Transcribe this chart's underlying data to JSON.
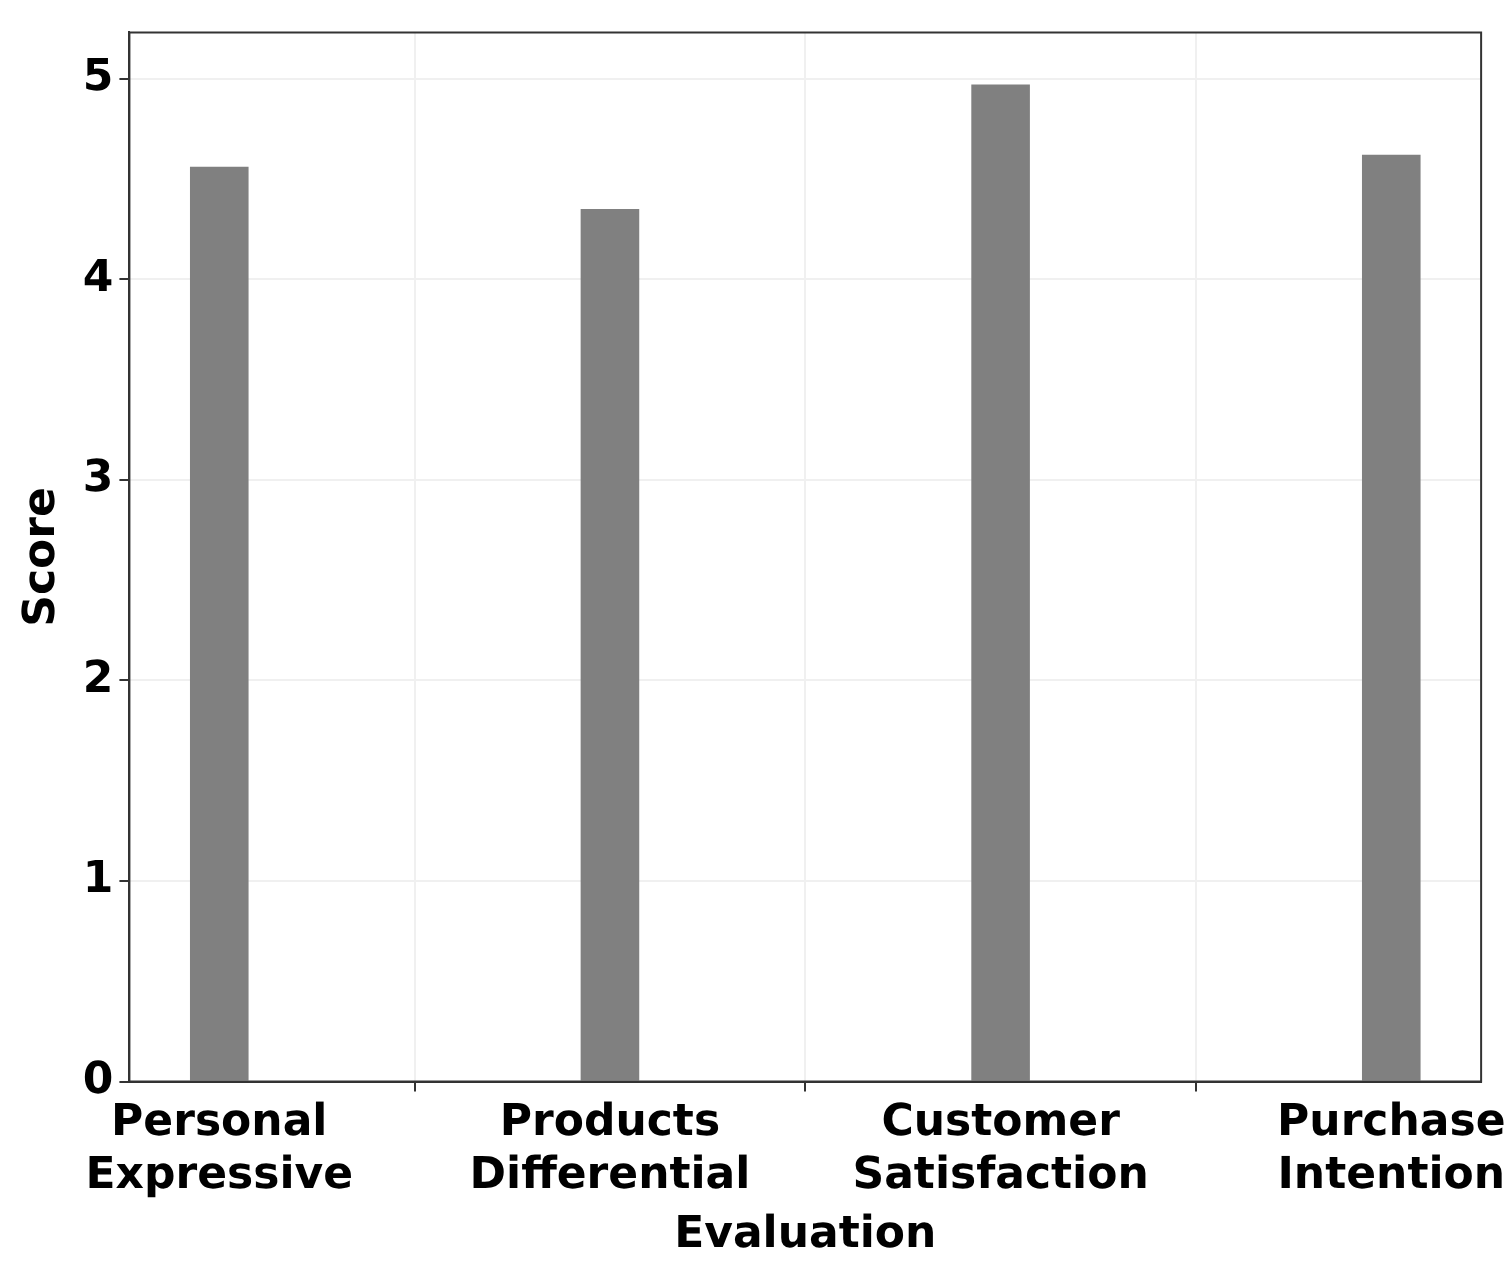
{
  "chart_data": {
    "type": "bar",
    "xlabel": "Evaluation",
    "ylabel": "Score",
    "categories": [
      "Personal Expressive",
      "Products Differential",
      "Customer Satisfaction",
      "Purchase Intention"
    ],
    "values": [
      4.56,
      4.35,
      4.97,
      4.62
    ],
    "color": "#808080",
    "ylim": [
      0,
      5.23
    ],
    "yticks": [
      0,
      1,
      2,
      3,
      4,
      5
    ],
    "grid": true
  }
}
